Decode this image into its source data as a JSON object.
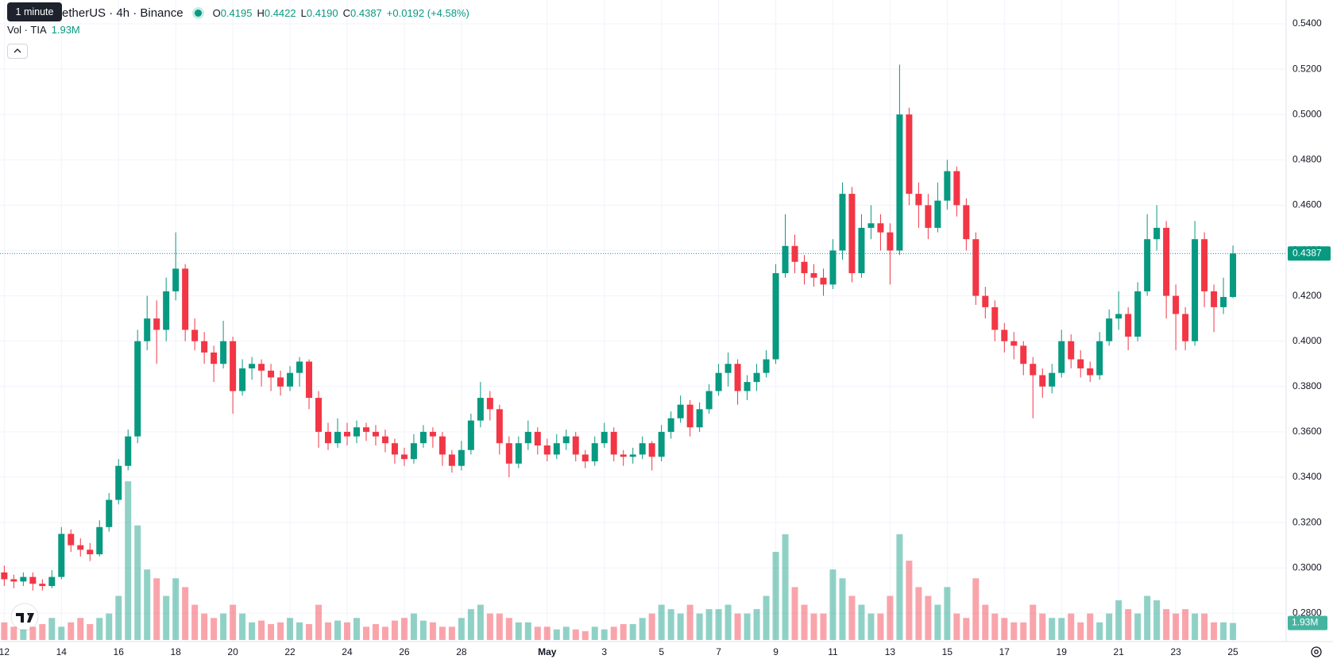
{
  "tooltip": "1 minute",
  "chart_data": {
    "type": "candlestick",
    "title": "etherUS · 4h · Binance",
    "legend": {
      "o_label": "O",
      "open": {
        "value": 0.4195,
        "label": "0.4195"
      },
      "h_label": "H",
      "high": {
        "value": 0.4422,
        "label": "0.4422"
      },
      "l_label": "L",
      "low": {
        "value": 0.419,
        "label": "0.4190"
      },
      "c_label": "C",
      "close": {
        "value": 0.4387,
        "label": "0.4387"
      },
      "change": "+0.0192 (+4.58%)"
    },
    "volume_label": "Vol · TIA",
    "volume_last": {
      "value": 1.93,
      "label": "1.93M"
    },
    "last_price": 0.4387,
    "up_color": "#089981",
    "down_color": "#f23645",
    "grid": true,
    "ylim": [
      0.2675,
      0.5505
    ],
    "yticks": [
      {
        "value": 0.28,
        "label": "0.2800"
      },
      {
        "value": 0.3,
        "label": "0.3000"
      },
      {
        "value": 0.32,
        "label": "0.3200"
      },
      {
        "value": 0.34,
        "label": "0.3400"
      },
      {
        "value": 0.36,
        "label": "0.3600"
      },
      {
        "value": 0.38,
        "label": "0.3800"
      },
      {
        "value": 0.4,
        "label": "0.4000"
      },
      {
        "value": 0.42,
        "label": "0.4200"
      },
      {
        "value": 0.44,
        "label": "0.4400"
      },
      {
        "value": 0.46,
        "label": "0.4600"
      },
      {
        "value": 0.48,
        "label": "0.4800"
      },
      {
        "value": 0.5,
        "label": "0.5000"
      },
      {
        "value": 0.52,
        "label": "0.5200"
      },
      {
        "value": 0.54,
        "label": "0.5400"
      }
    ],
    "categories": [
      "12",
      null,
      null,
      null,
      null,
      null,
      "14",
      null,
      null,
      null,
      null,
      null,
      "16",
      null,
      null,
      null,
      null,
      null,
      "18",
      null,
      null,
      null,
      null,
      null,
      "20",
      null,
      null,
      null,
      null,
      null,
      "22",
      null,
      null,
      null,
      null,
      null,
      "24",
      null,
      null,
      null,
      null,
      null,
      "26",
      null,
      null,
      null,
      null,
      null,
      "28",
      null,
      null,
      null,
      null,
      null,
      null,
      null,
      null,
      "May",
      null,
      null,
      null,
      null,
      null,
      "3",
      null,
      null,
      null,
      null,
      null,
      "5",
      null,
      null,
      null,
      null,
      null,
      "7",
      null,
      null,
      null,
      null,
      null,
      "9",
      null,
      null,
      null,
      null,
      null,
      "11",
      null,
      null,
      null,
      null,
      null,
      "13",
      null,
      null,
      null,
      null,
      null,
      "15",
      null,
      null,
      null,
      null,
      null,
      "17",
      null,
      null,
      null,
      null,
      null,
      "19",
      null,
      null,
      null,
      null,
      null,
      "21",
      null,
      null,
      null,
      null,
      null,
      "23",
      null,
      null,
      null,
      null,
      null,
      "25"
    ],
    "ohlc": [
      [
        0.298,
        0.301,
        0.292,
        0.295
      ],
      [
        0.295,
        0.297,
        0.291,
        0.294
      ],
      [
        0.294,
        0.298,
        0.292,
        0.296
      ],
      [
        0.296,
        0.298,
        0.29,
        0.293
      ],
      [
        0.293,
        0.295,
        0.29,
        0.292
      ],
      [
        0.292,
        0.299,
        0.291,
        0.296
      ],
      [
        0.296,
        0.318,
        0.295,
        0.315
      ],
      [
        0.315,
        0.317,
        0.307,
        0.31
      ],
      [
        0.31,
        0.313,
        0.305,
        0.308
      ],
      [
        0.308,
        0.311,
        0.303,
        0.306
      ],
      [
        0.306,
        0.321,
        0.305,
        0.318
      ],
      [
        0.318,
        0.333,
        0.316,
        0.33
      ],
      [
        0.33,
        0.348,
        0.328,
        0.345
      ],
      [
        0.345,
        0.361,
        0.343,
        0.358
      ],
      [
        0.358,
        0.405,
        0.355,
        0.4
      ],
      [
        0.4,
        0.42,
        0.396,
        0.41
      ],
      [
        0.41,
        0.418,
        0.39,
        0.405
      ],
      [
        0.405,
        0.428,
        0.4,
        0.422
      ],
      [
        0.422,
        0.448,
        0.418,
        0.432
      ],
      [
        0.432,
        0.434,
        0.4,
        0.405
      ],
      [
        0.405,
        0.41,
        0.396,
        0.4
      ],
      [
        0.4,
        0.404,
        0.39,
        0.395
      ],
      [
        0.395,
        0.398,
        0.382,
        0.39
      ],
      [
        0.39,
        0.409,
        0.388,
        0.4
      ],
      [
        0.4,
        0.402,
        0.368,
        0.378
      ],
      [
        0.378,
        0.392,
        0.376,
        0.388
      ],
      [
        0.388,
        0.393,
        0.383,
        0.39
      ],
      [
        0.39,
        0.392,
        0.38,
        0.387
      ],
      [
        0.387,
        0.39,
        0.378,
        0.384
      ],
      [
        0.384,
        0.387,
        0.376,
        0.38
      ],
      [
        0.38,
        0.389,
        0.378,
        0.386
      ],
      [
        0.386,
        0.393,
        0.38,
        0.391
      ],
      [
        0.391,
        0.392,
        0.37,
        0.375
      ],
      [
        0.375,
        0.378,
        0.353,
        0.36
      ],
      [
        0.36,
        0.364,
        0.352,
        0.355
      ],
      [
        0.355,
        0.366,
        0.353,
        0.36
      ],
      [
        0.36,
        0.364,
        0.354,
        0.358
      ],
      [
        0.358,
        0.365,
        0.355,
        0.362
      ],
      [
        0.362,
        0.364,
        0.356,
        0.36
      ],
      [
        0.36,
        0.363,
        0.354,
        0.358
      ],
      [
        0.358,
        0.361,
        0.351,
        0.355
      ],
      [
        0.355,
        0.357,
        0.346,
        0.35
      ],
      [
        0.35,
        0.353,
        0.345,
        0.348
      ],
      [
        0.348,
        0.359,
        0.346,
        0.355
      ],
      [
        0.355,
        0.363,
        0.353,
        0.36
      ],
      [
        0.36,
        0.362,
        0.353,
        0.358
      ],
      [
        0.358,
        0.36,
        0.345,
        0.35
      ],
      [
        0.35,
        0.352,
        0.342,
        0.345
      ],
      [
        0.345,
        0.356,
        0.343,
        0.352
      ],
      [
        0.352,
        0.368,
        0.35,
        0.365
      ],
      [
        0.365,
        0.382,
        0.362,
        0.375
      ],
      [
        0.375,
        0.378,
        0.365,
        0.37
      ],
      [
        0.37,
        0.372,
        0.35,
        0.355
      ],
      [
        0.355,
        0.358,
        0.34,
        0.346
      ],
      [
        0.346,
        0.358,
        0.344,
        0.355
      ],
      [
        0.355,
        0.365,
        0.352,
        0.36
      ],
      [
        0.36,
        0.362,
        0.35,
        0.354
      ],
      [
        0.354,
        0.357,
        0.347,
        0.35
      ],
      [
        0.35,
        0.359,
        0.348,
        0.355
      ],
      [
        0.355,
        0.361,
        0.352,
        0.358
      ],
      [
        0.358,
        0.36,
        0.347,
        0.35
      ],
      [
        0.35,
        0.352,
        0.344,
        0.347
      ],
      [
        0.347,
        0.358,
        0.345,
        0.355
      ],
      [
        0.355,
        0.364,
        0.353,
        0.36
      ],
      [
        0.36,
        0.362,
        0.347,
        0.35
      ],
      [
        0.35,
        0.352,
        0.345,
        0.349
      ],
      [
        0.349,
        0.353,
        0.346,
        0.35
      ],
      [
        0.35,
        0.358,
        0.348,
        0.355
      ],
      [
        0.355,
        0.356,
        0.343,
        0.349
      ],
      [
        0.349,
        0.363,
        0.347,
        0.36
      ],
      [
        0.36,
        0.369,
        0.357,
        0.366
      ],
      [
        0.366,
        0.376,
        0.364,
        0.372
      ],
      [
        0.372,
        0.374,
        0.358,
        0.362
      ],
      [
        0.362,
        0.373,
        0.36,
        0.37
      ],
      [
        0.37,
        0.381,
        0.368,
        0.378
      ],
      [
        0.378,
        0.39,
        0.376,
        0.386
      ],
      [
        0.386,
        0.395,
        0.38,
        0.39
      ],
      [
        0.39,
        0.392,
        0.372,
        0.378
      ],
      [
        0.378,
        0.385,
        0.374,
        0.382
      ],
      [
        0.382,
        0.39,
        0.378,
        0.386
      ],
      [
        0.386,
        0.396,
        0.384,
        0.392
      ],
      [
        0.392,
        0.434,
        0.39,
        0.43
      ],
      [
        0.43,
        0.456,
        0.428,
        0.442
      ],
      [
        0.442,
        0.447,
        0.43,
        0.435
      ],
      [
        0.435,
        0.438,
        0.425,
        0.43
      ],
      [
        0.43,
        0.434,
        0.424,
        0.428
      ],
      [
        0.428,
        0.432,
        0.42,
        0.425
      ],
      [
        0.425,
        0.445,
        0.423,
        0.44
      ],
      [
        0.44,
        0.47,
        0.436,
        0.465
      ],
      [
        0.465,
        0.468,
        0.426,
        0.43
      ],
      [
        0.43,
        0.456,
        0.428,
        0.45
      ],
      [
        0.45,
        0.46,
        0.445,
        0.452
      ],
      [
        0.452,
        0.456,
        0.44,
        0.448
      ],
      [
        0.448,
        0.452,
        0.425,
        0.44
      ],
      [
        0.44,
        0.522,
        0.438,
        0.5
      ],
      [
        0.5,
        0.503,
        0.46,
        0.465
      ],
      [
        0.465,
        0.47,
        0.45,
        0.46
      ],
      [
        0.46,
        0.465,
        0.445,
        0.45
      ],
      [
        0.45,
        0.47,
        0.448,
        0.462
      ],
      [
        0.462,
        0.48,
        0.458,
        0.475
      ],
      [
        0.475,
        0.477,
        0.455,
        0.46
      ],
      [
        0.46,
        0.463,
        0.44,
        0.445
      ],
      [
        0.445,
        0.448,
        0.416,
        0.42
      ],
      [
        0.42,
        0.424,
        0.41,
        0.415
      ],
      [
        0.415,
        0.418,
        0.4,
        0.405
      ],
      [
        0.405,
        0.408,
        0.395,
        0.4
      ],
      [
        0.4,
        0.404,
        0.392,
        0.398
      ],
      [
        0.398,
        0.4,
        0.385,
        0.39
      ],
      [
        0.39,
        0.393,
        0.366,
        0.385
      ],
      [
        0.385,
        0.388,
        0.375,
        0.38
      ],
      [
        0.38,
        0.39,
        0.377,
        0.386
      ],
      [
        0.386,
        0.405,
        0.384,
        0.4
      ],
      [
        0.4,
        0.403,
        0.388,
        0.392
      ],
      [
        0.392,
        0.396,
        0.384,
        0.388
      ],
      [
        0.388,
        0.391,
        0.382,
        0.385
      ],
      [
        0.385,
        0.404,
        0.383,
        0.4
      ],
      [
        0.4,
        0.414,
        0.398,
        0.41
      ],
      [
        0.41,
        0.422,
        0.405,
        0.412
      ],
      [
        0.412,
        0.415,
        0.396,
        0.402
      ],
      [
        0.402,
        0.426,
        0.4,
        0.422
      ],
      [
        0.422,
        0.456,
        0.42,
        0.445
      ],
      [
        0.445,
        0.46,
        0.44,
        0.45
      ],
      [
        0.45,
        0.453,
        0.41,
        0.42
      ],
      [
        0.42,
        0.425,
        0.396,
        0.412
      ],
      [
        0.412,
        0.415,
        0.396,
        0.4
      ],
      [
        0.4,
        0.453,
        0.398,
        0.445
      ],
      [
        0.445,
        0.448,
        0.415,
        0.422
      ],
      [
        0.422,
        0.425,
        0.404,
        0.415
      ],
      [
        0.415,
        0.428,
        0.412,
        0.4195
      ],
      [
        0.4195,
        0.4422,
        0.419,
        0.4387
      ]
    ],
    "volume": [
      2,
      1.5,
      1.2,
      1.5,
      1.8,
      2.5,
      1.5,
      2,
      2.5,
      1.8,
      2.5,
      3,
      5,
      18,
      13,
      8,
      7,
      5,
      7,
      6,
      4,
      3,
      2.5,
      3,
      4,
      3,
      2,
      2.2,
      1.8,
      2,
      2.5,
      2,
      1.8,
      4,
      2,
      2.2,
      2,
      2.5,
      1.5,
      1.8,
      1.5,
      2.2,
      2.5,
      3,
      2.2,
      2,
      1.5,
      1.5,
      2.5,
      3.5,
      4,
      3,
      3,
      2.5,
      2,
      2,
      1.5,
      1.5,
      1.2,
      1.5,
      1.2,
      1,
      1.5,
      1.2,
      1.5,
      1.8,
      1.8,
      2.5,
      3,
      4,
      3.5,
      3,
      4,
      3,
      3.5,
      3.5,
      4,
      3,
      3,
      3.5,
      5,
      10,
      12,
      6,
      4,
      3,
      3,
      8,
      7,
      5,
      4,
      3,
      3,
      5,
      12,
      9,
      6,
      5,
      4,
      6,
      3,
      2.5,
      7,
      4,
      3,
      2.5,
      2,
      2,
      4,
      3,
      2.5,
      2.5,
      3,
      2,
      3,
      2,
      3,
      4.5,
      3.5,
      3,
      5,
      4.5,
      3.5,
      3,
      3.5,
      3,
      3,
      2,
      2,
      1.93
    ]
  }
}
